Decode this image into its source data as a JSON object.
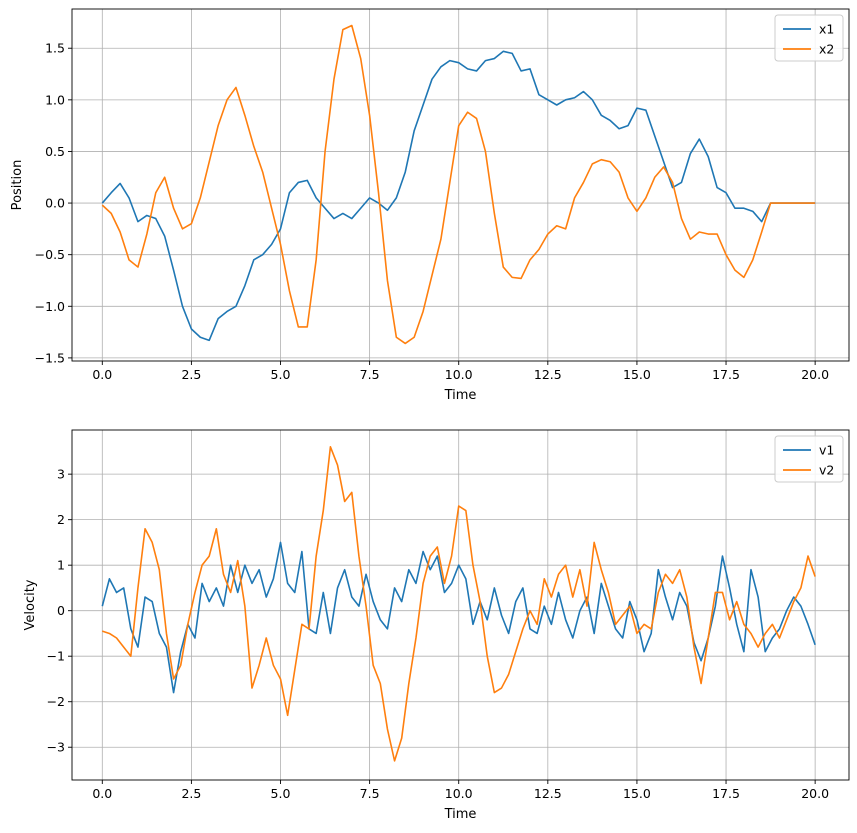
{
  "chart_data": [
    {
      "type": "line",
      "title": "",
      "xlabel": "Time",
      "ylabel": "Position",
      "xlim": [
        -0.85,
        20.95
      ],
      "ylim": [
        -1.53,
        1.88
      ],
      "xticks": [
        0.0,
        2.5,
        5.0,
        7.5,
        10.0,
        12.5,
        15.0,
        17.5,
        20.0
      ],
      "xtick_labels": [
        "0.0",
        "2.5",
        "5.0",
        "7.5",
        "10.0",
        "12.5",
        "15.0",
        "17.5",
        "20.0"
      ],
      "yticks": [
        -1.5,
        -1.0,
        -0.5,
        0.0,
        0.5,
        1.0,
        1.5
      ],
      "ytick_labels": [
        "−1.5",
        "−1.0",
        "−0.5",
        "0.0",
        "0.5",
        "1.0",
        "1.5"
      ],
      "grid": true,
      "legend_position": "top-right",
      "series": [
        {
          "name": "x1",
          "color": "#1f77b4",
          "x": [
            0.0,
            0.25,
            0.5,
            0.75,
            1.0,
            1.25,
            1.5,
            1.75,
            2.0,
            2.25,
            2.5,
            2.75,
            3.0,
            3.25,
            3.5,
            3.75,
            4.0,
            4.25,
            4.5,
            4.75,
            5.0,
            5.25,
            5.5,
            5.75,
            6.0,
            6.25,
            6.5,
            6.75,
            7.0,
            7.25,
            7.5,
            7.75,
            8.0,
            8.25,
            8.5,
            8.75,
            9.0,
            9.25,
            9.5,
            9.75,
            10.0,
            10.25,
            10.5,
            10.75,
            11.0,
            11.25,
            11.5,
            11.75,
            12.0,
            12.25,
            12.5,
            12.75,
            13.0,
            13.25,
            13.5,
            13.75,
            14.0,
            14.25,
            14.5,
            14.75,
            15.0,
            15.25,
            15.5,
            15.75,
            16.0,
            16.25,
            16.5,
            16.75,
            17.0,
            17.25,
            17.5,
            17.75,
            18.0,
            18.25,
            18.5,
            18.75,
            19.0,
            19.25,
            19.5,
            19.75,
            20.0
          ],
          "values": [
            0.0,
            0.1,
            0.19,
            0.05,
            -0.18,
            -0.12,
            -0.15,
            -0.32,
            -0.65,
            -1.0,
            -1.22,
            -1.3,
            -1.33,
            -1.12,
            -1.05,
            -1.0,
            -0.8,
            -0.55,
            -0.5,
            -0.4,
            -0.25,
            0.1,
            0.2,
            0.22,
            0.05,
            -0.05,
            -0.15,
            -0.1,
            -0.15,
            -0.05,
            0.05,
            0.0,
            -0.07,
            0.05,
            0.3,
            0.7,
            0.95,
            1.2,
            1.32,
            1.38,
            1.36,
            1.3,
            1.28,
            1.38,
            1.4,
            1.47,
            1.45,
            1.28,
            1.3,
            1.05,
            1.0,
            0.95,
            1.0,
            1.02,
            1.08,
            1.0,
            0.85,
            0.8,
            0.72,
            0.75,
            0.92,
            0.9,
            0.65,
            0.4,
            0.15,
            0.2,
            0.48,
            0.62,
            0.45,
            0.15,
            0.1,
            -0.05,
            -0.05,
            -0.08,
            -0.18,
            0.0,
            0.0,
            0.0,
            0.0,
            0.0,
            0.0
          ]
        },
        {
          "name": "x2",
          "color": "#ff7f0e",
          "x": [
            0.0,
            0.25,
            0.5,
            0.75,
            1.0,
            1.25,
            1.5,
            1.75,
            2.0,
            2.25,
            2.5,
            2.75,
            3.0,
            3.25,
            3.5,
            3.75,
            4.0,
            4.25,
            4.5,
            4.75,
            5.0,
            5.25,
            5.5,
            5.75,
            6.0,
            6.25,
            6.5,
            6.75,
            7.0,
            7.25,
            7.5,
            7.75,
            8.0,
            8.25,
            8.5,
            8.75,
            9.0,
            9.25,
            9.5,
            9.75,
            10.0,
            10.25,
            10.5,
            10.75,
            11.0,
            11.25,
            11.5,
            11.75,
            12.0,
            12.25,
            12.5,
            12.75,
            13.0,
            13.25,
            13.5,
            13.75,
            14.0,
            14.25,
            14.5,
            14.75,
            15.0,
            15.25,
            15.5,
            15.75,
            16.0,
            16.25,
            16.5,
            16.75,
            17.0,
            17.25,
            17.5,
            17.75,
            18.0,
            18.25,
            18.5,
            18.75,
            19.0,
            19.25,
            19.5,
            19.75,
            20.0
          ],
          "values": [
            -0.02,
            -0.1,
            -0.28,
            -0.55,
            -0.62,
            -0.3,
            0.1,
            0.25,
            -0.05,
            -0.25,
            -0.2,
            0.05,
            0.4,
            0.75,
            1.0,
            1.12,
            0.85,
            0.55,
            0.3,
            -0.05,
            -0.4,
            -0.85,
            -1.2,
            -1.2,
            -0.55,
            0.5,
            1.2,
            1.68,
            1.72,
            1.4,
            0.85,
            0.1,
            -0.75,
            -1.3,
            -1.36,
            -1.3,
            -1.05,
            -0.7,
            -0.35,
            0.2,
            0.75,
            0.88,
            0.82,
            0.5,
            -0.1,
            -0.62,
            -0.72,
            -0.73,
            -0.55,
            -0.45,
            -0.3,
            -0.22,
            -0.25,
            0.05,
            0.2,
            0.38,
            0.42,
            0.4,
            0.3,
            0.05,
            -0.08,
            0.05,
            0.25,
            0.35,
            0.2,
            -0.15,
            -0.35,
            -0.28,
            -0.3,
            -0.3,
            -0.5,
            -0.65,
            -0.72,
            -0.55,
            -0.28,
            0.0,
            0.0,
            0.0,
            0.0,
            0.0,
            0.0
          ]
        }
      ]
    },
    {
      "type": "line",
      "title": "",
      "xlabel": "Time",
      "ylabel": "Velocity",
      "xlim": [
        -0.85,
        20.95
      ],
      "ylim": [
        -3.72,
        3.97
      ],
      "xticks": [
        0.0,
        2.5,
        5.0,
        7.5,
        10.0,
        12.5,
        15.0,
        17.5,
        20.0
      ],
      "xtick_labels": [
        "0.0",
        "2.5",
        "5.0",
        "7.5",
        "10.0",
        "12.5",
        "15.0",
        "17.5",
        "20.0"
      ],
      "yticks": [
        -3,
        -2,
        -1,
        0,
        1,
        2,
        3
      ],
      "ytick_labels": [
        "−3",
        "−2",
        "−1",
        "0",
        "1",
        "2",
        "3"
      ],
      "grid": true,
      "legend_position": "top-right",
      "series": [
        {
          "name": "v1",
          "color": "#1f77b4",
          "x": [
            0.0,
            0.2,
            0.4,
            0.6,
            0.8,
            1.0,
            1.2,
            1.4,
            1.6,
            1.8,
            2.0,
            2.2,
            2.4,
            2.6,
            2.8,
            3.0,
            3.2,
            3.4,
            3.6,
            3.8,
            4.0,
            4.2,
            4.4,
            4.6,
            4.8,
            5.0,
            5.2,
            5.4,
            5.6,
            5.8,
            6.0,
            6.2,
            6.4,
            6.6,
            6.8,
            7.0,
            7.2,
            7.4,
            7.6,
            7.8,
            8.0,
            8.2,
            8.4,
            8.6,
            8.8,
            9.0,
            9.2,
            9.4,
            9.6,
            9.8,
            10.0,
            10.2,
            10.4,
            10.6,
            10.8,
            11.0,
            11.2,
            11.4,
            11.6,
            11.8,
            12.0,
            12.2,
            12.4,
            12.6,
            12.8,
            13.0,
            13.2,
            13.4,
            13.6,
            13.8,
            14.0,
            14.2,
            14.4,
            14.6,
            14.8,
            15.0,
            15.2,
            15.4,
            15.6,
            15.8,
            16.0,
            16.2,
            16.4,
            16.6,
            16.8,
            17.0,
            17.2,
            17.4,
            17.6,
            17.8,
            18.0,
            18.2,
            18.4,
            18.6,
            18.8,
            19.0,
            19.2,
            19.4,
            19.6,
            19.8,
            20.0
          ],
          "values": [
            0.1,
            0.7,
            0.4,
            0.5,
            -0.4,
            -0.8,
            0.3,
            0.2,
            -0.5,
            -0.8,
            -1.8,
            -0.9,
            -0.3,
            -0.6,
            0.6,
            0.2,
            0.5,
            0.1,
            1.0,
            0.4,
            1.0,
            0.6,
            0.9,
            0.3,
            0.7,
            1.5,
            0.6,
            0.4,
            1.3,
            -0.4,
            -0.5,
            0.4,
            -0.5,
            0.5,
            0.9,
            0.3,
            0.1,
            0.8,
            0.2,
            -0.2,
            -0.4,
            0.5,
            0.2,
            0.9,
            0.6,
            1.3,
            0.9,
            1.2,
            0.4,
            0.6,
            1.0,
            0.7,
            -0.3,
            0.2,
            -0.2,
            0.5,
            -0.1,
            -0.5,
            0.2,
            0.5,
            -0.4,
            -0.5,
            0.1,
            -0.3,
            0.4,
            -0.2,
            -0.6,
            0.0,
            0.3,
            -0.5,
            0.6,
            0.1,
            -0.4,
            -0.6,
            0.2,
            -0.2,
            -0.9,
            -0.5,
            0.9,
            0.3,
            -0.2,
            0.4,
            0.1,
            -0.7,
            -1.1,
            -0.6,
            0.1,
            1.2,
            0.5,
            -0.3,
            -0.9,
            0.9,
            0.3,
            -0.9,
            -0.6,
            -0.4,
            0.0,
            0.3,
            0.1,
            -0.3,
            -0.75
          ]
        },
        {
          "name": "v2",
          "color": "#ff7f0e",
          "x": [
            0.0,
            0.2,
            0.4,
            0.6,
            0.8,
            1.0,
            1.2,
            1.4,
            1.6,
            1.8,
            2.0,
            2.2,
            2.4,
            2.6,
            2.8,
            3.0,
            3.2,
            3.4,
            3.6,
            3.8,
            4.0,
            4.2,
            4.4,
            4.6,
            4.8,
            5.0,
            5.2,
            5.4,
            5.6,
            5.8,
            6.0,
            6.2,
            6.4,
            6.6,
            6.8,
            7.0,
            7.2,
            7.4,
            7.6,
            7.8,
            8.0,
            8.2,
            8.4,
            8.6,
            8.8,
            9.0,
            9.2,
            9.4,
            9.6,
            9.8,
            10.0,
            10.2,
            10.4,
            10.6,
            10.8,
            11.0,
            11.2,
            11.4,
            11.6,
            11.8,
            12.0,
            12.2,
            12.4,
            12.6,
            12.8,
            13.0,
            13.2,
            13.4,
            13.6,
            13.8,
            14.0,
            14.2,
            14.4,
            14.6,
            14.8,
            15.0,
            15.2,
            15.4,
            15.6,
            15.8,
            16.0,
            16.2,
            16.4,
            16.6,
            16.8,
            17.0,
            17.2,
            17.4,
            17.6,
            17.8,
            18.0,
            18.2,
            18.4,
            18.6,
            18.8,
            19.0,
            19.2,
            19.4,
            19.6,
            19.8,
            20.0
          ],
          "values": [
            -0.45,
            -0.5,
            -0.6,
            -0.8,
            -1.0,
            0.5,
            1.8,
            1.5,
            0.9,
            -0.5,
            -1.5,
            -1.2,
            -0.3,
            0.4,
            1.0,
            1.2,
            1.8,
            0.8,
            0.4,
            1.1,
            0.1,
            -1.7,
            -1.2,
            -0.6,
            -1.2,
            -1.5,
            -2.3,
            -1.3,
            -0.3,
            -0.4,
            1.2,
            2.2,
            3.6,
            3.2,
            2.4,
            2.6,
            1.2,
            0.1,
            -1.2,
            -1.6,
            -2.6,
            -3.3,
            -2.8,
            -1.6,
            -0.6,
            0.6,
            1.2,
            1.4,
            0.6,
            1.2,
            2.3,
            2.2,
            1.0,
            0.2,
            -1.0,
            -1.8,
            -1.7,
            -1.4,
            -0.9,
            -0.4,
            0.0,
            -0.3,
            0.7,
            0.3,
            0.8,
            1.0,
            0.3,
            0.9,
            0.1,
            1.5,
            0.9,
            0.4,
            -0.3,
            -0.1,
            0.1,
            -0.5,
            -0.3,
            -0.4,
            0.4,
            0.8,
            0.6,
            0.9,
            0.3,
            -0.8,
            -1.6,
            -0.6,
            0.4,
            0.4,
            -0.2,
            0.2,
            -0.3,
            -0.5,
            -0.8,
            -0.5,
            -0.3,
            -0.6,
            -0.2,
            0.2,
            0.5,
            1.2,
            0.75
          ]
        }
      ]
    }
  ]
}
